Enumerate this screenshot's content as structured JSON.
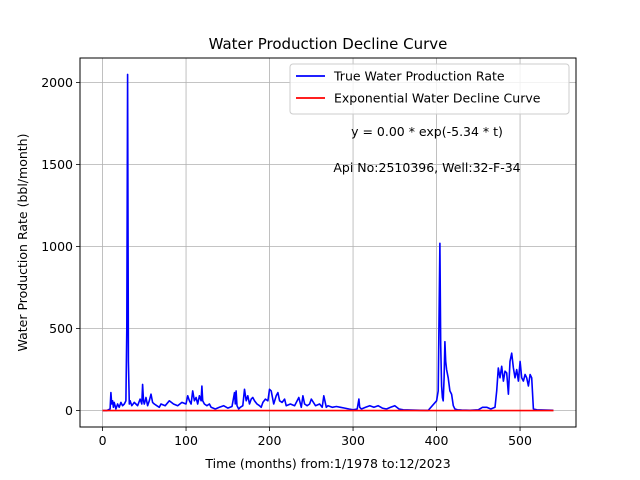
{
  "chart_data": {
    "type": "line",
    "title": "Water Production Decline Curve",
    "xlabel": "Time (months) from:1/1978 to:12/2023",
    "ylabel": "Water Production Rate (bbl/month)",
    "xlim": [
      -27,
      567
    ],
    "ylim": [
      -100,
      2150
    ],
    "x_ticks": [
      0,
      100,
      200,
      300,
      400,
      500
    ],
    "y_ticks": [
      0,
      500,
      1000,
      1500,
      2000
    ],
    "grid": true,
    "legend_position": "top-right",
    "annotations": [
      "y = 0.00 * exp(-5.34 * t)",
      "Api No:2510396, Well:32-F-34"
    ],
    "series": [
      {
        "name": "True Water Production Rate",
        "color": "#0000ff",
        "x": [
          0,
          5,
          9,
          10,
          11,
          12,
          13,
          14,
          15,
          16,
          18,
          20,
          22,
          24,
          26,
          28,
          29,
          30,
          31,
          32,
          33,
          35,
          38,
          40,
          42,
          45,
          47,
          48,
          49,
          50,
          52,
          54,
          56,
          58,
          60,
          62,
          65,
          68,
          70,
          75,
          80,
          85,
          90,
          95,
          100,
          102,
          104,
          106,
          108,
          110,
          112,
          114,
          116,
          118,
          119,
          120,
          122,
          125,
          128,
          130,
          135,
          140,
          145,
          150,
          155,
          158,
          159,
          160,
          161,
          162,
          163,
          165,
          168,
          170,
          172,
          174,
          176,
          178,
          180,
          182,
          185,
          188,
          190,
          192,
          195,
          198,
          200,
          202,
          205,
          208,
          210,
          212,
          215,
          218,
          220,
          225,
          230,
          235,
          238,
          240,
          242,
          245,
          248,
          250,
          255,
          260,
          263,
          265,
          268,
          270,
          275,
          280,
          285,
          290,
          295,
          300,
          305,
          307,
          308,
          310,
          315,
          320,
          325,
          330,
          335,
          340,
          345,
          350,
          355,
          360,
          370,
          380,
          390,
          400,
          402,
          403,
          404,
          405,
          406,
          407,
          408,
          409,
          410,
          411,
          412,
          414,
          416,
          418,
          420,
          422,
          425,
          430,
          440,
          450,
          455,
          460,
          465,
          470,
          472,
          474,
          476,
          478,
          480,
          482,
          484,
          486,
          488,
          490,
          492,
          494,
          496,
          498,
          500,
          502,
          504,
          506,
          508,
          510,
          512,
          514,
          516,
          520,
          530,
          540
        ],
        "y": [
          0,
          0,
          10,
          110,
          40,
          60,
          20,
          50,
          30,
          10,
          40,
          20,
          50,
          30,
          40,
          60,
          500,
          2050,
          300,
          40,
          60,
          30,
          50,
          40,
          30,
          70,
          40,
          160,
          60,
          40,
          80,
          30,
          60,
          100,
          50,
          40,
          30,
          20,
          40,
          30,
          60,
          40,
          30,
          50,
          40,
          90,
          60,
          40,
          120,
          60,
          80,
          40,
          90,
          60,
          150,
          60,
          40,
          30,
          40,
          20,
          10,
          20,
          30,
          15,
          25,
          110,
          40,
          120,
          30,
          20,
          10,
          20,
          30,
          130,
          60,
          90,
          40,
          70,
          80,
          60,
          40,
          30,
          20,
          50,
          70,
          60,
          130,
          120,
          40,
          90,
          110,
          60,
          50,
          70,
          30,
          40,
          30,
          80,
          20,
          90,
          40,
          30,
          40,
          70,
          30,
          40,
          20,
          90,
          20,
          30,
          20,
          25,
          20,
          15,
          10,
          5,
          10,
          70,
          20,
          10,
          20,
          30,
          20,
          30,
          15,
          10,
          20,
          30,
          10,
          5,
          3,
          2,
          1,
          60,
          120,
          600,
          1020,
          400,
          150,
          80,
          60,
          200,
          420,
          300,
          250,
          200,
          120,
          100,
          30,
          10,
          5,
          3,
          2,
          5,
          20,
          20,
          10,
          20,
          120,
          260,
          200,
          270,
          180,
          240,
          230,
          100,
          300,
          350,
          260,
          200,
          250,
          180,
          300,
          200,
          180,
          220,
          200,
          150,
          220,
          200,
          10,
          5,
          3,
          2
        ]
      },
      {
        "name": "Exponential Water Decline Curve",
        "color": "#ff0000",
        "x": [
          0,
          100,
          200,
          300,
          400,
          500,
          540
        ],
        "y": [
          0,
          0,
          0,
          0,
          0,
          0,
          0
        ]
      }
    ]
  }
}
